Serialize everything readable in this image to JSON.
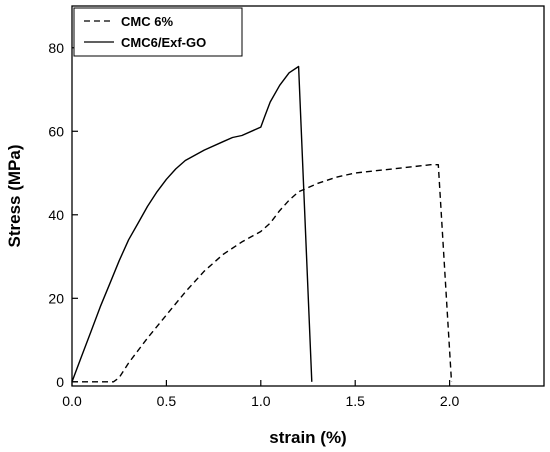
{
  "chart_data": {
    "type": "line",
    "title": "",
    "xlabel": "strain (%)",
    "ylabel": "Stress (MPa)",
    "xlim": [
      0,
      2.5
    ],
    "ylim": [
      -1,
      90
    ],
    "xticks": [
      0.0,
      0.5,
      1.0,
      1.5,
      2.0
    ],
    "xtick_labels": [
      "0.0",
      "0.5",
      "1.0",
      "1.5",
      "2.0"
    ],
    "yticks": [
      0,
      20,
      40,
      60,
      80
    ],
    "ytick_labels": [
      "0",
      "20",
      "40",
      "60",
      "80"
    ],
    "grid": false,
    "legend_position": "top-left",
    "series": [
      {
        "name": "CMC 6%",
        "style": "dashed",
        "color": "#000000",
        "x": [
          0.0,
          0.22,
          0.25,
          0.3,
          0.4,
          0.5,
          0.6,
          0.7,
          0.8,
          0.9,
          1.0,
          1.05,
          1.1,
          1.15,
          1.2,
          1.3,
          1.4,
          1.5,
          1.6,
          1.7,
          1.8,
          1.9,
          1.94,
          2.01
        ],
        "y": [
          0.0,
          0.0,
          1.0,
          4.5,
          10.5,
          16.0,
          21.5,
          26.5,
          30.5,
          33.5,
          36.0,
          38.0,
          41.0,
          43.5,
          45.5,
          47.5,
          49.0,
          50.0,
          50.5,
          51.0,
          51.5,
          52.0,
          52.0,
          0.0
        ]
      },
      {
        "name": "CMC6/Exf-GO",
        "style": "solid",
        "color": "#000000",
        "x": [
          0.0,
          0.05,
          0.1,
          0.15,
          0.2,
          0.25,
          0.3,
          0.35,
          0.4,
          0.45,
          0.5,
          0.55,
          0.6,
          0.7,
          0.8,
          0.85,
          0.9,
          1.0,
          1.02,
          1.05,
          1.1,
          1.15,
          1.2,
          1.27
        ],
        "y": [
          0.0,
          6.0,
          12.0,
          18.0,
          23.5,
          29.0,
          34.0,
          38.0,
          42.0,
          45.5,
          48.5,
          51.0,
          53.0,
          55.5,
          57.5,
          58.5,
          59.0,
          61.0,
          63.5,
          67.0,
          71.0,
          74.0,
          75.5,
          0.0
        ]
      }
    ]
  }
}
